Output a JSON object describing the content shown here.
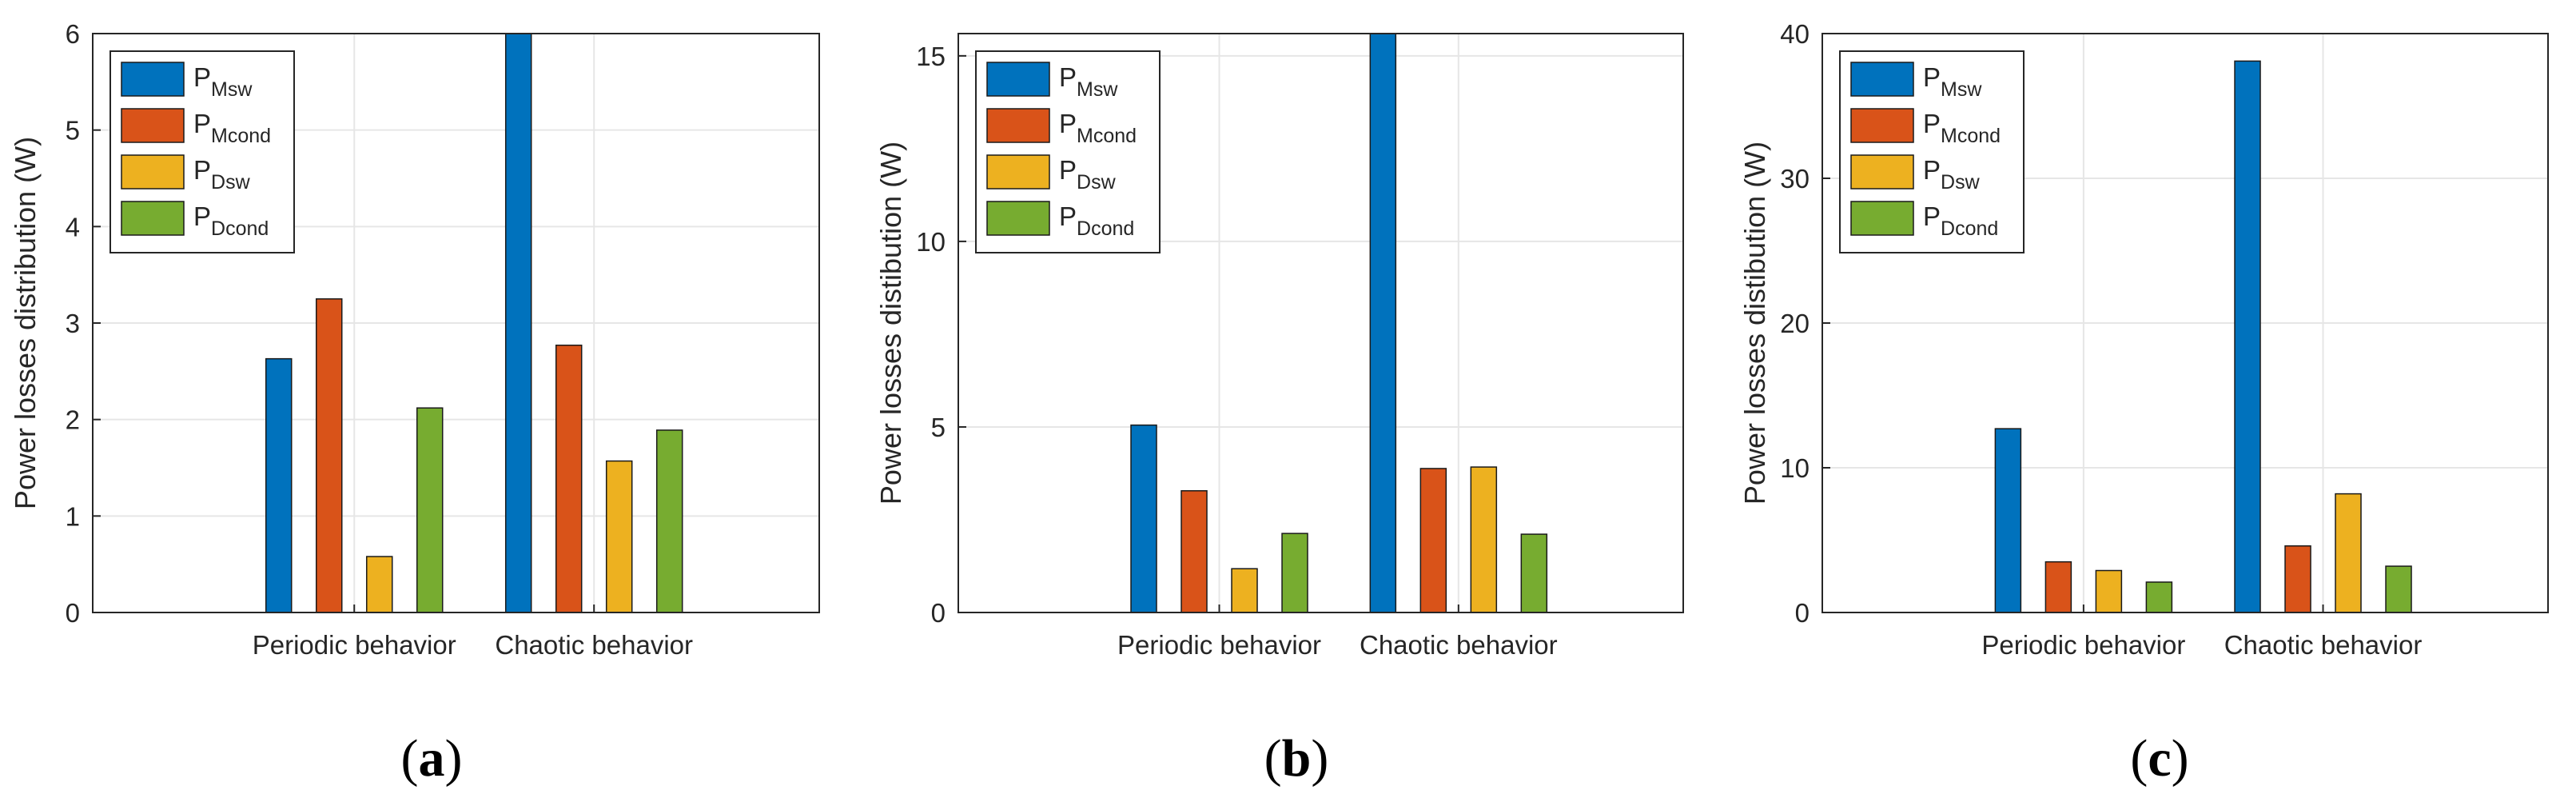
{
  "chart_data": [
    {
      "type": "bar",
      "panel_label": "(a)",
      "panel_letter": "a",
      "categories": [
        "Periodic behavior",
        "Chaotic behavior"
      ],
      "series": [
        {
          "name": "P_Msw",
          "legend_main": "P",
          "legend_sub": "Msw",
          "color": "#0072BD",
          "values": [
            2.63,
            6.0
          ]
        },
        {
          "name": "P_Mcond",
          "legend_main": "P",
          "legend_sub": "Mcond",
          "color": "#D95319",
          "values": [
            3.25,
            2.77
          ]
        },
        {
          "name": "P_Dsw",
          "legend_main": "P",
          "legend_sub": "Dsw",
          "color": "#EDB120",
          "values": [
            0.58,
            1.57
          ]
        },
        {
          "name": "P_Dcond",
          "legend_main": "P",
          "legend_sub": "Dcond",
          "color": "#77AC30",
          "values": [
            2.12,
            1.89
          ]
        }
      ],
      "title": "",
      "xlabel": "",
      "ylabel": "Power losses distribution (W)",
      "ylim": [
        0,
        6
      ],
      "yticks": [
        0,
        1,
        2,
        3,
        4,
        5,
        6
      ],
      "ytick_labels": [
        "0",
        "1",
        "2",
        "3",
        "4",
        "5",
        "6"
      ],
      "grid": true,
      "legend_position": "top-left"
    },
    {
      "type": "bar",
      "panel_label": "(b)",
      "panel_letter": "b",
      "categories": [
        "Periodic behavior",
        "Chaotic behavior"
      ],
      "series": [
        {
          "name": "P_Msw",
          "legend_main": "P",
          "legend_sub": "Msw",
          "color": "#0072BD",
          "values": [
            5.05,
            15.6
          ]
        },
        {
          "name": "P_Mcond",
          "legend_main": "P",
          "legend_sub": "Mcond",
          "color": "#D95319",
          "values": [
            3.28,
            3.88
          ]
        },
        {
          "name": "P_Dsw",
          "legend_main": "P",
          "legend_sub": "Dsw",
          "color": "#EDB120",
          "values": [
            1.18,
            3.92
          ]
        },
        {
          "name": "P_Dcond",
          "legend_main": "P",
          "legend_sub": "Dcond",
          "color": "#77AC30",
          "values": [
            2.13,
            2.11
          ]
        }
      ],
      "title": "",
      "xlabel": "",
      "ylabel": "Power losses distibution (W)",
      "ylim": [
        0,
        15.6
      ],
      "yticks": [
        0,
        5,
        10,
        15
      ],
      "ytick_labels": [
        "0",
        "5",
        "10",
        "15"
      ],
      "grid": true,
      "legend_position": "top-left"
    },
    {
      "type": "bar",
      "panel_label": "(c)",
      "panel_letter": "c",
      "categories": [
        "Periodic behavior",
        "Chaotic behavior"
      ],
      "series": [
        {
          "name": "P_Msw",
          "legend_main": "P",
          "legend_sub": "Msw",
          "color": "#0072BD",
          "values": [
            12.7,
            38.1
          ]
        },
        {
          "name": "P_Mcond",
          "legend_main": "P",
          "legend_sub": "Mcond",
          "color": "#D95319",
          "values": [
            3.5,
            4.6
          ]
        },
        {
          "name": "P_Dsw",
          "legend_main": "P",
          "legend_sub": "Dsw",
          "color": "#EDB120",
          "values": [
            2.9,
            8.2
          ]
        },
        {
          "name": "P_Dcond",
          "legend_main": "P",
          "legend_sub": "Dcond",
          "color": "#77AC30",
          "values": [
            2.1,
            3.2
          ]
        }
      ],
      "title": "",
      "xlabel": "",
      "ylabel": "Power losses distibution (W)",
      "ylim": [
        0,
        40
      ],
      "yticks": [
        0,
        10,
        20,
        30,
        40
      ],
      "ytick_labels": [
        "0",
        "10",
        "20",
        "30",
        "40"
      ],
      "grid": true,
      "legend_position": "top-left"
    }
  ]
}
